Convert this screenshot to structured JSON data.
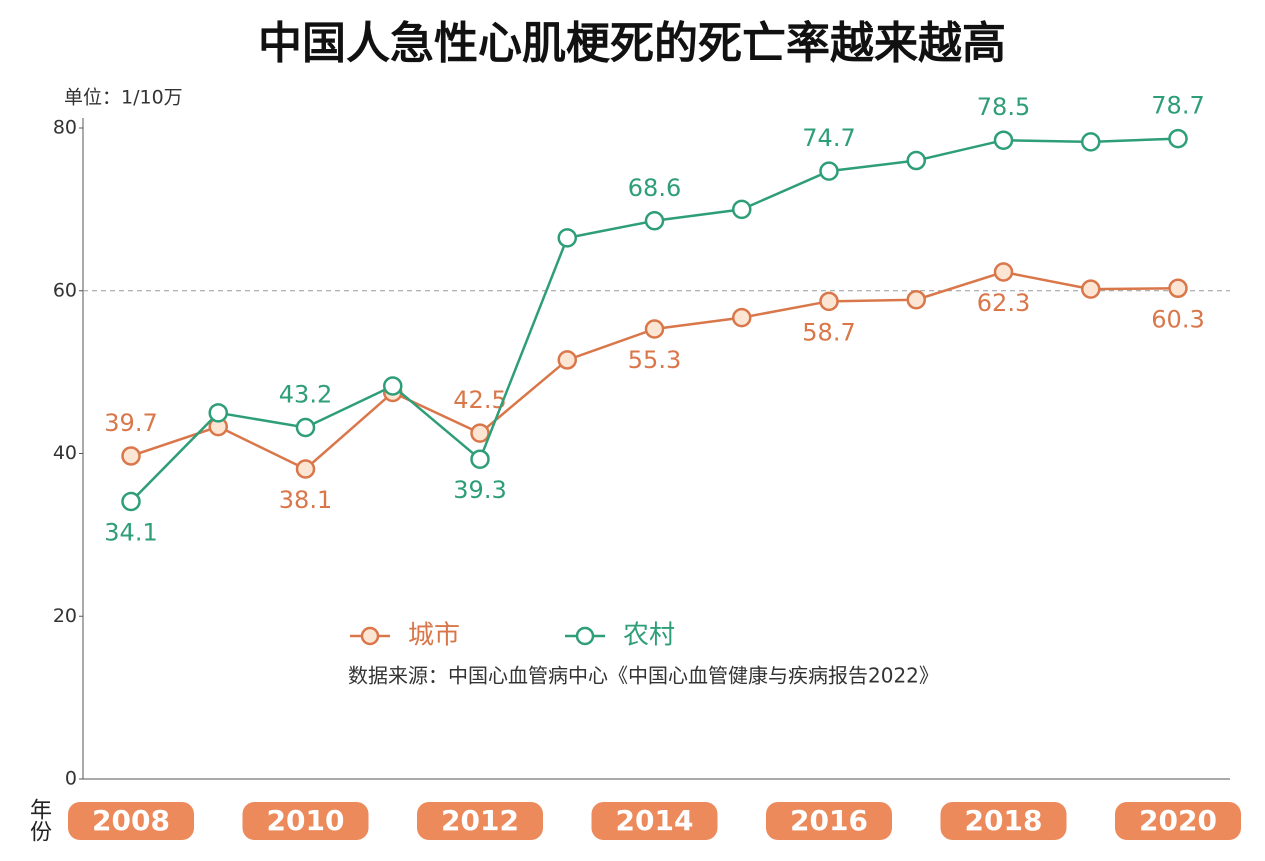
{
  "chart_data": {
    "type": "line",
    "title": "中国人急性心肌梗死的死亡率越来越高",
    "unit_label": "单位：1/10万",
    "x_label": "年份",
    "source": "数据来源：中国心血管病中心《中国心血管健康与疾病报告2022》",
    "categories": [
      "2008",
      null,
      "2010",
      null,
      "2012",
      null,
      "2014",
      null,
      "2016",
      null,
      "2018",
      null,
      "2020"
    ],
    "series": [
      {
        "name": "城市",
        "color": "#d9774a",
        "values": [
          39.7,
          43.3,
          38.1,
          47.5,
          42.5,
          51.5,
          55.3,
          56.7,
          58.7,
          58.9,
          62.3,
          60.2,
          60.3
        ],
        "value_labels": [
          "39.7",
          null,
          "38.1",
          null,
          "42.5",
          null,
          "55.3",
          null,
          "58.7",
          null,
          "62.3",
          null,
          "60.3"
        ]
      },
      {
        "name": "农村",
        "color": "#2e9e78",
        "values": [
          34.1,
          45.0,
          43.2,
          48.3,
          39.3,
          66.5,
          68.6,
          70.0,
          74.7,
          76.0,
          78.5,
          78.3,
          78.7
        ],
        "value_labels": [
          "34.1",
          null,
          "43.2",
          null,
          "39.3",
          null,
          "68.6",
          null,
          "74.7",
          null,
          "78.5",
          null,
          "78.7"
        ]
      }
    ],
    "ylim": [
      0,
      80
    ],
    "yticks": [
      0,
      20,
      40,
      60,
      80
    ],
    "reference_line": 60
  }
}
